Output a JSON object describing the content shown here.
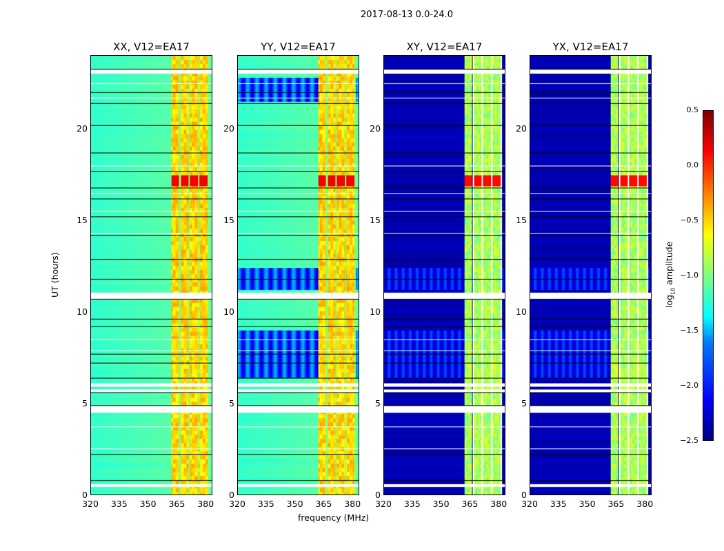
{
  "chart_data": {
    "type": "heatmap",
    "title": "2017-08-13 0.0-24.0",
    "xlabel": "frequency (MHz)",
    "ylabel": "UT (hours)",
    "xlim": [
      320,
      383.5
    ],
    "ylim": [
      0,
      24
    ],
    "xticks": [
      "320",
      "335",
      "350",
      "365",
      "380"
    ],
    "yticks": [
      "0",
      "5",
      "10",
      "15",
      "20"
    ],
    "panels": [
      {
        "title": "XX, V12=EA17",
        "pol": "parallel"
      },
      {
        "title": "YY, V12=EA17",
        "pol": "parallel"
      },
      {
        "title": "XY, V12=EA17",
        "pol": "cross"
      },
      {
        "title": "YX, V12=EA17",
        "pol": "cross"
      }
    ],
    "band_mhz": [
      362,
      382
    ],
    "flagged_hours": [
      [
        23.05,
        23.25
      ],
      [
        10.7,
        11.05
      ],
      [
        5.9,
        6.1
      ],
      [
        5.63,
        5.75
      ],
      [
        4.47,
        4.85
      ],
      [
        0.45,
        0.6
      ]
    ],
    "colorbar": {
      "label": "log10 amplitude",
      "label_main": "log",
      "label_sub": "10",
      "label_rest": " amplitude",
      "range": [
        -2.5,
        0.5
      ],
      "ticks": [
        "0.5",
        "0.0",
        "−0.5",
        "−1.0",
        "−1.5",
        "−2.0",
        "−2.5"
      ],
      "colormap": "jet"
    }
  }
}
